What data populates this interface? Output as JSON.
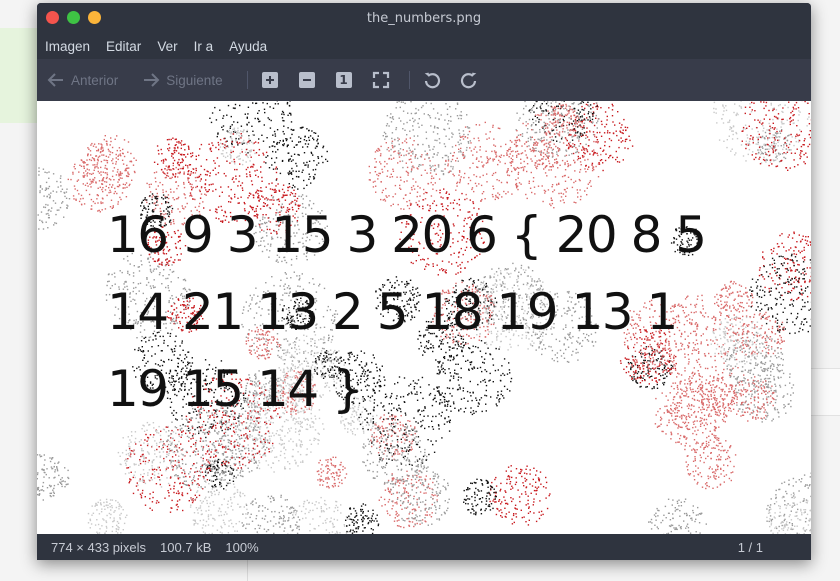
{
  "window": {
    "title": "the_numbers.png"
  },
  "menubar": {
    "items": [
      "Imagen",
      "Editar",
      "Ver",
      "Ir a",
      "Ayuda"
    ]
  },
  "toolbar": {
    "prev_label": "Anterior",
    "next_label": "Siguiente",
    "icons": [
      "arrow-left-icon",
      "arrow-right-icon",
      "zoom-in-icon",
      "zoom-out-icon",
      "zoom-normal-icon",
      "fit-icon",
      "rotate-left-icon",
      "rotate-right-icon"
    ],
    "zoom_normal_glyph": "1"
  },
  "image": {
    "lines": [
      "16 9 3 15 3 20 6 { 20 8 5",
      "14 21 13 2 5 18 19 13 1",
      "19 15 14 }"
    ],
    "colors": {
      "background": "#ffffff",
      "red_noise": "#c8191e",
      "gray_noise": "#9a9a9a",
      "black_noise": "#111111"
    }
  },
  "statusbar": {
    "dimensions": "774 × 433 pixels",
    "size": "100.7 kB",
    "zoom": "100%",
    "page": "1 / 1"
  },
  "colors": {
    "window_bg": "#2f343f",
    "toolbar_bg": "#383c4a",
    "text": "#d3dae3"
  }
}
